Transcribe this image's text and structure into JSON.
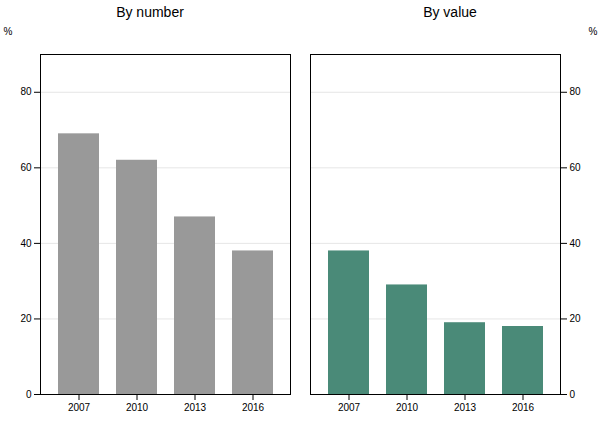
{
  "chart_data": [
    {
      "type": "bar",
      "title": "By number",
      "categories": [
        "2007",
        "2010",
        "2013",
        "2016"
      ],
      "values": [
        69,
        62,
        47,
        38
      ],
      "color": "#999999",
      "ylabel": "%",
      "ylim": [
        0,
        90
      ],
      "yticks": [
        0,
        20,
        40,
        60,
        80
      ],
      "grid": true
    },
    {
      "type": "bar",
      "title": "By value",
      "categories": [
        "2007",
        "2010",
        "2013",
        "2016"
      ],
      "values": [
        38,
        29,
        19,
        18
      ],
      "color": "#4a8a78",
      "ylabel": "%",
      "ylim": [
        0,
        90
      ],
      "yticks": [
        0,
        20,
        40,
        60,
        80
      ],
      "grid": true
    }
  ]
}
